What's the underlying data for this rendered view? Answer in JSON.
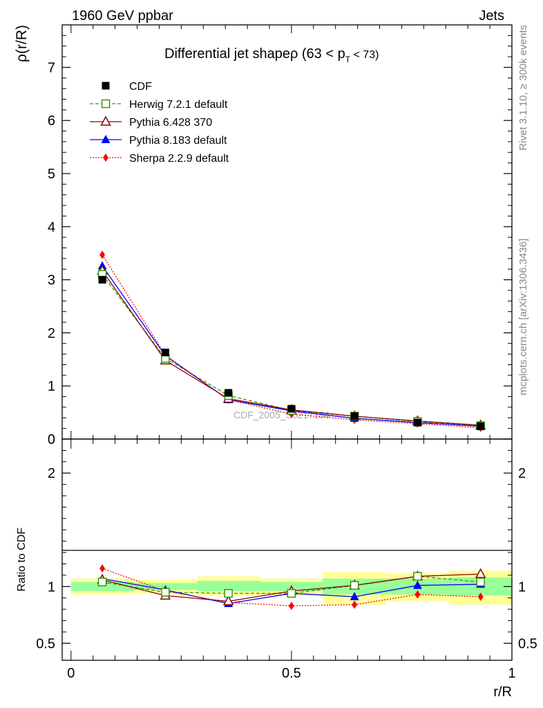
{
  "header": {
    "left": "1960 GeV ppbar",
    "right": "Jets"
  },
  "side_labels": {
    "rivet": "Rivet 3.1.10, ≥ 300k events",
    "mcplots": "mcplots.cern.ch [arXiv:1306.3436]"
  },
  "watermark": "CDF_2005_S6217184",
  "chart_data": [
    {
      "type": "line",
      "title": "Differential jet shapeρ (63 < p",
      "title_sub": "T",
      "title_end": " < 73)",
      "xlabel": "r/R",
      "ylabel": "ρ(r/R)",
      "xlim": [
        -0.02,
        1.0
      ],
      "ylim": [
        0,
        7.8
      ],
      "yticks": [
        {
          "v": 0,
          "label": "0"
        },
        {
          "v": 1,
          "label": "1"
        },
        {
          "v": 2,
          "label": "2"
        },
        {
          "v": 3,
          "label": "3"
        },
        {
          "v": 4,
          "label": "4"
        },
        {
          "v": 5,
          "label": "5"
        },
        {
          "v": 6,
          "label": "6"
        },
        {
          "v": 7,
          "label": "7"
        }
      ],
      "x": [
        0.071,
        0.214,
        0.357,
        0.5,
        0.643,
        0.786,
        0.929
      ],
      "series": [
        {
          "name": "CDF",
          "color": "#000000",
          "marker": "square-filled",
          "line": "none",
          "values": [
            3.0,
            1.63,
            0.87,
            0.57,
            0.43,
            0.31,
            0.24
          ]
        },
        {
          "name": "Herwig 7.2.1 default",
          "color": "#339900",
          "marker": "square-open",
          "line": "dashed",
          "values": [
            3.1,
            1.52,
            0.82,
            0.54,
            0.43,
            0.33,
            0.25
          ]
        },
        {
          "name": "Pythia 6.428 370",
          "color": "#8b0000",
          "marker": "triangle-open",
          "line": "solid",
          "values": [
            3.17,
            1.48,
            0.76,
            0.55,
            0.43,
            0.34,
            0.26
          ]
        },
        {
          "name": "Pythia 8.183 default",
          "color": "#0000ff",
          "marker": "triangle-filled",
          "line": "solid",
          "values": [
            3.26,
            1.57,
            0.74,
            0.53,
            0.39,
            0.31,
            0.24
          ]
        },
        {
          "name": "Sherpa 2.2.9 default",
          "color": "#ff0000",
          "marker": "diamond-filled",
          "line": "dotted",
          "values": [
            3.47,
            1.58,
            0.74,
            0.47,
            0.36,
            0.29,
            0.21
          ]
        }
      ]
    },
    {
      "type": "line",
      "title": "",
      "xlabel": "r/R",
      "ylabel": "Ratio to CDF",
      "xlim": [
        -0.02,
        1.0
      ],
      "ylim": [
        0.35,
        2.3
      ],
      "yticks": [
        {
          "v": 0.5,
          "label": "0.5"
        },
        {
          "v": 1,
          "label": "1"
        },
        {
          "v": 2,
          "label": "2"
        }
      ],
      "xticks": [
        {
          "v": 0,
          "label": "0"
        },
        {
          "v": 0.5,
          "label": "0.5"
        },
        {
          "v": 1,
          "label": "1"
        }
      ],
      "x": [
        0.071,
        0.214,
        0.357,
        0.5,
        0.643,
        0.786,
        0.929
      ],
      "bins": [
        [
          0.0,
          0.143
        ],
        [
          0.143,
          0.286
        ],
        [
          0.286,
          0.429
        ],
        [
          0.429,
          0.571
        ],
        [
          0.571,
          0.714
        ],
        [
          0.714,
          0.857
        ],
        [
          0.857,
          1.0
        ]
      ],
      "band_inner": [
        [
          0.96,
          1.04
        ],
        [
          0.97,
          1.03
        ],
        [
          0.96,
          1.05
        ],
        [
          0.96,
          1.04
        ],
        [
          0.93,
          1.07
        ],
        [
          0.93,
          1.07
        ],
        [
          0.92,
          1.08
        ]
      ],
      "band_outer": [
        [
          0.93,
          1.07
        ],
        [
          0.94,
          1.06
        ],
        [
          0.92,
          1.09
        ],
        [
          0.92,
          1.07
        ],
        [
          0.84,
          1.13
        ],
        [
          0.87,
          1.12
        ],
        [
          0.84,
          1.14
        ]
      ],
      "series": [
        {
          "name": "Herwig 7.2.1 default",
          "color": "#339900",
          "marker": "square-open",
          "line": "dashed",
          "values": [
            1.04,
            0.95,
            0.94,
            0.94,
            1.01,
            1.09,
            1.04
          ]
        },
        {
          "name": "Pythia 6.428 370",
          "color": "#8b0000",
          "marker": "triangle-open",
          "line": "solid",
          "values": [
            1.06,
            0.92,
            0.87,
            0.96,
            1.01,
            1.09,
            1.11
          ]
        },
        {
          "name": "Pythia 8.183 default",
          "color": "#0000ff",
          "marker": "triangle-filled",
          "line": "solid",
          "values": [
            1.07,
            0.97,
            0.85,
            0.94,
            0.91,
            1.01,
            1.02
          ]
        },
        {
          "name": "Sherpa 2.2.9 default",
          "color": "#ff0000",
          "marker": "diamond-filled",
          "line": "dotted",
          "values": [
            1.16,
            0.96,
            0.86,
            0.83,
            0.84,
            0.93,
            0.91
          ]
        }
      ]
    }
  ]
}
